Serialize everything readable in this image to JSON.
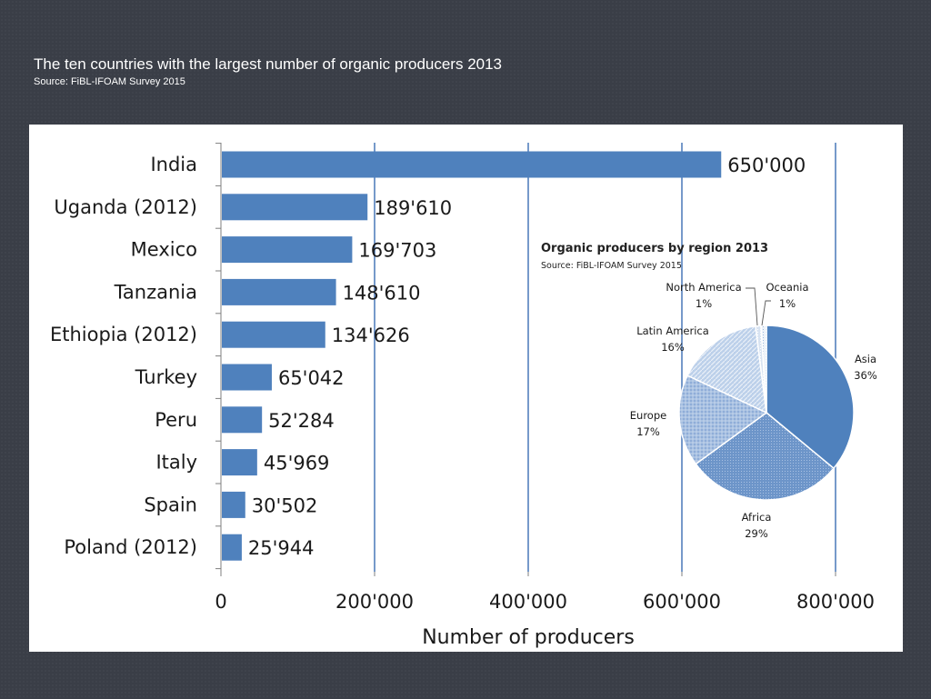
{
  "slide": {
    "title": "The ten countries with the largest number of organic producers 2013",
    "source": "Source: FiBL-IFOAM Survey 2015"
  },
  "chart_data": [
    {
      "type": "bar",
      "orientation": "horizontal",
      "categories": [
        "India",
        "Uganda (2012)",
        "Mexico",
        "Tanzania",
        "Ethiopia (2012)",
        "Turkey",
        "Peru",
        "Italy",
        "Spain",
        "Poland (2012)"
      ],
      "values": [
        650000,
        189610,
        169703,
        148610,
        134626,
        65042,
        52284,
        45969,
        30502,
        25944
      ],
      "value_labels": [
        "650'000",
        "189'610",
        "169'703",
        "148'610",
        "134'626",
        "65'042",
        "52'284",
        "45'969",
        "30'502",
        "25'944"
      ],
      "xlabel": "Number of producers",
      "xlim": [
        0,
        800000
      ],
      "xticks": [
        0,
        200000,
        400000,
        600000,
        800000
      ],
      "xtick_labels": [
        "0",
        "200'000",
        "400'000",
        "600'000",
        "800'000"
      ],
      "grid": true,
      "bar_color": "#4f81bd"
    },
    {
      "type": "pie",
      "title": "Organic producers by region 2013",
      "subtitle": "Source: FiBL-IFOAM Survey 2015",
      "slices": [
        {
          "label": "Asia",
          "value": 36,
          "value_label": "36%",
          "color": "#4f81bd"
        },
        {
          "label": "Africa",
          "value": 29,
          "value_label": "29%",
          "color": "#7b9fd0"
        },
        {
          "label": "Europe",
          "value": 17,
          "value_label": "17%",
          "color": "#9fb9de"
        },
        {
          "label": "Latin America",
          "value": 16,
          "value_label": "16%",
          "color": "#c3d3ea"
        },
        {
          "label": "North America",
          "value": 1,
          "value_label": "1%",
          "color": "#dce6f2"
        },
        {
          "label": "Oceania",
          "value": 1,
          "value_label": "1%",
          "color": "#eef3f9"
        }
      ]
    }
  ]
}
